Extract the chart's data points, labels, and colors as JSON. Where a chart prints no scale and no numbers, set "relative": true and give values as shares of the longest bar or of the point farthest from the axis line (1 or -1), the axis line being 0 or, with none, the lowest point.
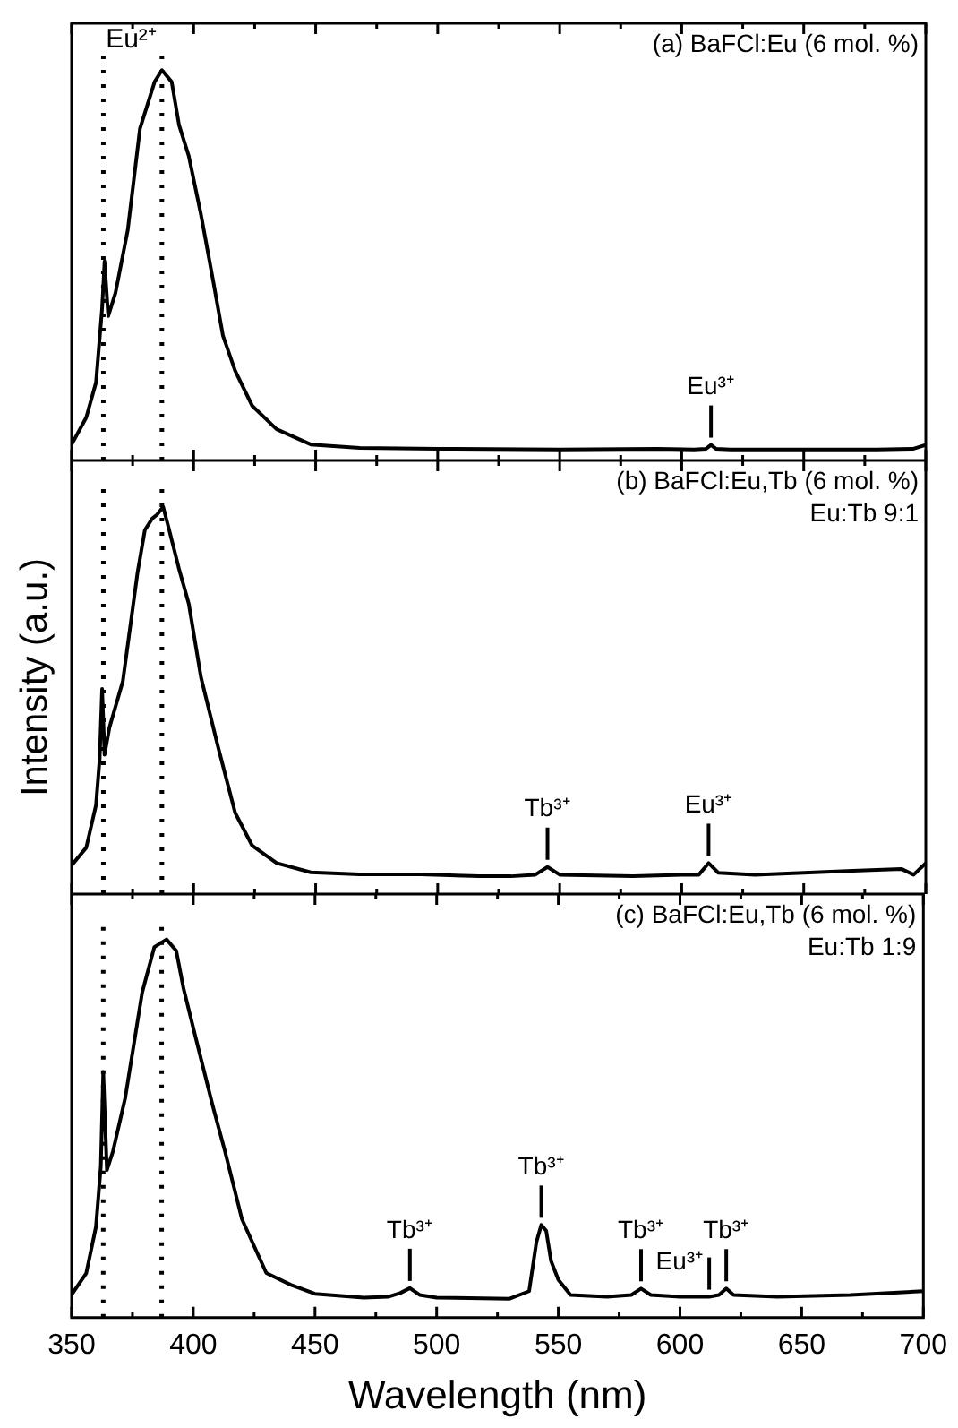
{
  "chart_data": [
    {
      "type": "line",
      "title": "(a) BaFCl:Eu (6 mol. %)",
      "relative": true,
      "color": "#000000",
      "tick_labels": false,
      "x": [
        350,
        356,
        360,
        362.5,
        363.5,
        365,
        368,
        373,
        378,
        384,
        387,
        391,
        394,
        398,
        403,
        408,
        412,
        417,
        424,
        434,
        448,
        468,
        500,
        550,
        590,
        605,
        610,
        612,
        614,
        620,
        680,
        695,
        700
      ],
      "values": [
        0.041,
        0.11,
        0.2,
        0.39,
        0.51,
        0.37,
        0.43,
        0.59,
        0.85,
        0.97,
        1,
        0.97,
        0.86,
        0.78,
        0.63,
        0.46,
        0.32,
        0.23,
        0.14,
        0.08,
        0.041,
        0.032,
        0.03,
        0.028,
        0.03,
        0.028,
        0.03,
        0.04,
        0.03,
        0.028,
        0.028,
        0.03,
        0.04
      ],
      "xlim": [
        350,
        700
      ],
      "xticks": [
        350,
        {
          "value": 375,
          "label": null
        },
        400,
        {
          "value": 425,
          "label": null
        },
        450,
        {
          "value": 475,
          "label": null
        },
        500,
        {
          "value": 525,
          "label": null
        },
        550,
        {
          "value": 575,
          "label": null
        },
        600,
        {
          "value": 625,
          "label": null
        },
        650,
        {
          "value": 675,
          "label": null
        },
        700
      ],
      "ref_lines": [
        {
          "axis": "x",
          "value": 363,
          "line_style": "dotted",
          "color": "#000000"
        },
        {
          "axis": "x",
          "value": 387,
          "line_style": "dotted",
          "color": "#000000",
          "label": "Eu²⁺"
        }
      ],
      "annotations": [
        {
          "text": "Eu³⁺",
          "x": 612,
          "y": 0.04
        }
      ]
    },
    {
      "type": "line",
      "title": "(b) BaFCl:Eu,Tb (6 mol. %)",
      "subtitle": "Eu:Tb 9:1",
      "ylabel": "Intensity (a.u.)",
      "relative": true,
      "color": "#000000",
      "tick_labels": false,
      "x": [
        350,
        356,
        360,
        361.5,
        362.5,
        363.5,
        365.5,
        371,
        377,
        380,
        383,
        385,
        387.5,
        390,
        394,
        398,
        403,
        410,
        417,
        424,
        434,
        448,
        468,
        493,
        517,
        530,
        540,
        545,
        550,
        580,
        600,
        607,
        611,
        615,
        630,
        650,
        670,
        690,
        695,
        700
      ],
      "values": [
        0.074,
        0.12,
        0.23,
        0.35,
        0.53,
        0.36,
        0.43,
        0.55,
        0.83,
        0.94,
        0.97,
        0.98,
        1,
        0.94,
        0.84,
        0.75,
        0.56,
        0.38,
        0.21,
        0.125,
        0.08,
        0.056,
        0.051,
        0.051,
        0.046,
        0.046,
        0.05,
        0.07,
        0.05,
        0.046,
        0.05,
        0.05,
        0.08,
        0.055,
        0.05,
        0.055,
        0.06,
        0.065,
        0.05,
        0.08
      ],
      "xlim": [
        350,
        700
      ],
      "xticks": [
        350,
        {
          "value": 375,
          "label": null
        },
        400,
        {
          "value": 425,
          "label": null
        },
        450,
        {
          "value": 475,
          "label": null
        },
        500,
        {
          "value": 525,
          "label": null
        },
        550,
        {
          "value": 575,
          "label": null
        },
        600,
        {
          "value": 625,
          "label": null
        },
        650,
        {
          "value": 675,
          "label": null
        },
        700
      ],
      "ref_lines": [
        {
          "axis": "x",
          "value": 363,
          "line_style": "dotted",
          "color": "#000000"
        },
        {
          "axis": "x",
          "value": 387,
          "line_style": "dotted",
          "color": "#000000"
        }
      ],
      "annotations": [
        {
          "text": "Tb³⁺",
          "x": 545,
          "y": 0.07
        },
        {
          "text": "Eu³⁺",
          "x": 611,
          "y": 0.08
        }
      ]
    },
    {
      "type": "line",
      "title": "(c) BaFCl:Eu,Tb (6 mol. %)",
      "subtitle": "Eu:Tb 1:9",
      "xlabel": "Wavelength (nm)",
      "relative": true,
      "color": "#000000",
      "tick_labels": "x",
      "x": [
        350,
        356,
        360,
        362,
        363,
        364.5,
        367,
        372,
        379,
        384,
        389,
        393,
        396,
        401,
        408,
        413,
        420,
        430,
        440,
        450,
        470,
        480,
        485,
        489,
        493,
        500,
        530,
        538,
        541,
        543,
        545,
        547,
        550,
        555,
        570,
        580,
        584,
        588,
        600,
        612,
        616,
        619,
        622,
        640,
        670,
        700
      ],
      "values": [
        0.061,
        0.117,
        0.24,
        0.4,
        0.65,
        0.39,
        0.44,
        0.58,
        0.86,
        0.98,
        1,
        0.97,
        0.87,
        0.74,
        0.56,
        0.44,
        0.26,
        0.118,
        0.087,
        0.063,
        0.053,
        0.055,
        0.065,
        0.078,
        0.06,
        0.053,
        0.05,
        0.07,
        0.2,
        0.245,
        0.23,
        0.15,
        0.1,
        0.06,
        0.055,
        0.06,
        0.077,
        0.06,
        0.055,
        0.055,
        0.06,
        0.077,
        0.06,
        0.055,
        0.06,
        0.07
      ],
      "xlim": [
        350,
        700
      ],
      "xticks": [
        350,
        {
          "value": 375,
          "label": null
        },
        400,
        {
          "value": 425,
          "label": null
        },
        450,
        {
          "value": 475,
          "label": null
        },
        500,
        {
          "value": 525,
          "label": null
        },
        550,
        {
          "value": 575,
          "label": null
        },
        600,
        {
          "value": 625,
          "label": null
        },
        650,
        {
          "value": 675,
          "label": null
        },
        700
      ],
      "ref_lines": [
        {
          "axis": "x",
          "value": 363,
          "line_style": "dotted",
          "color": "#000000"
        },
        {
          "axis": "x",
          "value": 387,
          "line_style": "dotted",
          "color": "#000000"
        }
      ],
      "annotations": [
        {
          "text": "Tb³⁺",
          "x": 489,
          "y": 0.078
        },
        {
          "text": "Tb³⁺",
          "x": 543,
          "y": 0.245
        },
        {
          "text": "Tb³⁺",
          "x": 584,
          "y": 0.077
        },
        {
          "text": "Tb³⁺",
          "x": 619,
          "y": 0.077
        },
        {
          "text": "Eu³⁺",
          "x": 612,
          "y": 0.055
        }
      ]
    }
  ]
}
